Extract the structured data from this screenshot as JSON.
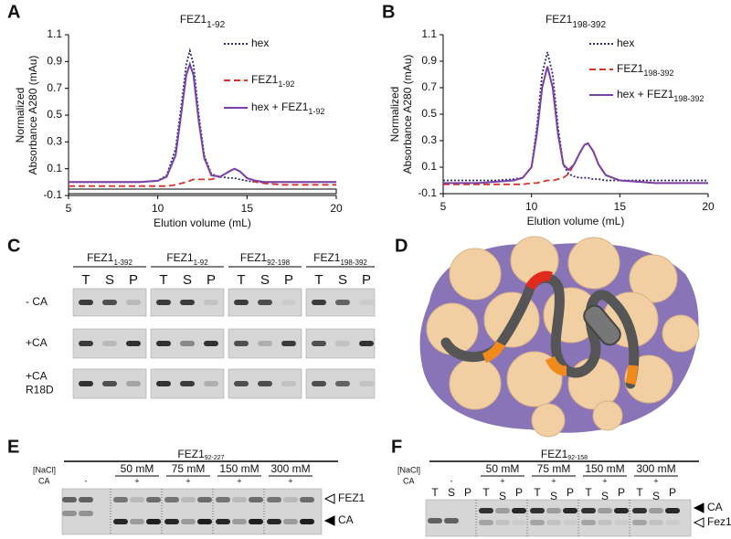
{
  "chart_data": [
    {
      "type": "line",
      "panel": "A",
      "title": "FEZ1",
      "title_subscript": "1-92",
      "y_label": [
        "Normalized",
        "Absorbance A280 (mAu)"
      ],
      "x_label": "Elution volume (mL)",
      "xlim": [
        5,
        20
      ],
      "xticks": [
        5,
        10,
        15,
        20
      ],
      "ylim": [
        -0.1,
        1.1
      ],
      "yticks": [
        -0.1,
        0.1,
        0.3,
        0.5,
        0.7,
        0.9,
        1.1
      ],
      "x": [
        5,
        6,
        7,
        8,
        9,
        10,
        10.5,
        11,
        11.3,
        11.6,
        11.8,
        12,
        12.3,
        12.6,
        13,
        13.5,
        14,
        14.3,
        14.6,
        15,
        15.5,
        16,
        17,
        18,
        19,
        20
      ],
      "series": [
        {
          "name": "hex",
          "color": "#2a2f6e",
          "style": "dotted",
          "values": [
            0,
            0,
            0,
            0,
            0,
            0.01,
            0.05,
            0.25,
            0.55,
            0.88,
            0.98,
            0.88,
            0.5,
            0.2,
            0.06,
            0.04,
            0.03,
            0.03,
            0.02,
            0.01,
            0,
            0,
            0,
            0,
            0,
            0
          ]
        },
        {
          "name": "FEZ1",
          "name_subscript": "1-92",
          "color": "#d8322a",
          "style": "dashed",
          "values": [
            -0.03,
            -0.03,
            -0.03,
            -0.03,
            -0.03,
            -0.03,
            -0.03,
            -0.02,
            -0.01,
            0,
            0.01,
            0.02,
            0.02,
            0.02,
            0.02,
            0.04,
            0.08,
            0.1,
            0.08,
            0.03,
            0,
            -0.01,
            -0.02,
            -0.02,
            -0.02,
            -0.02
          ]
        },
        {
          "name": "hex + FEZ1",
          "name_subscript": "1-92",
          "color": "#7b3fa8",
          "style": "solid",
          "values": [
            0,
            0,
            0,
            0,
            0,
            0.01,
            0.04,
            0.2,
            0.5,
            0.8,
            0.88,
            0.8,
            0.45,
            0.18,
            0.05,
            0.04,
            0.08,
            0.1,
            0.08,
            0.03,
            0.01,
            0,
            0,
            0,
            0,
            0
          ]
        }
      ]
    },
    {
      "type": "line",
      "panel": "B",
      "title": "FEZ1",
      "title_subscript": "198-392",
      "y_label": [
        "Normalized",
        "Absorbance A280 (mAu)"
      ],
      "x_label": "Elution volume (mL)",
      "xlim": [
        5,
        20
      ],
      "xticks": [
        5,
        10,
        15,
        20
      ],
      "ylim": [
        -0.1,
        1.1
      ],
      "yticks": [
        -0.1,
        0.1,
        0.3,
        0.5,
        0.7,
        0.9,
        1.1
      ],
      "x": [
        5,
        6,
        7,
        8,
        9,
        9.5,
        10,
        10.3,
        10.6,
        10.9,
        11.2,
        11.5,
        11.8,
        12.1,
        12.4,
        12.7,
        13,
        13.2,
        13.5,
        13.8,
        14.2,
        15,
        16,
        17,
        18,
        20
      ],
      "series": [
        {
          "name": "hex",
          "color": "#2a2f6e",
          "style": "dotted",
          "values": [
            0,
            0,
            0,
            0,
            0.01,
            0.02,
            0.1,
            0.4,
            0.8,
            0.97,
            0.8,
            0.4,
            0.12,
            0.05,
            0.03,
            0.02,
            0.02,
            0.02,
            0.01,
            0.01,
            0,
            0,
            0,
            0,
            0,
            0
          ]
        },
        {
          "name": "FEZ1",
          "name_subscript": "198-392",
          "color": "#d8322a",
          "style": "dashed",
          "values": [
            -0.03,
            -0.03,
            -0.03,
            -0.03,
            -0.03,
            -0.03,
            -0.02,
            -0.02,
            -0.01,
            0,
            0,
            0.01,
            0.02,
            0.05,
            0.12,
            0.2,
            0.27,
            0.28,
            0.22,
            0.12,
            0.04,
            0,
            -0.01,
            -0.02,
            -0.02,
            -0.02
          ]
        },
        {
          "name": "hex + FEZ1",
          "name_subscript": "198-392",
          "color": "#7b3fa8",
          "style": "solid",
          "values": [
            -0.02,
            -0.02,
            -0.02,
            -0.01,
            0,
            0.02,
            0.1,
            0.35,
            0.7,
            0.86,
            0.7,
            0.35,
            0.12,
            0.08,
            0.12,
            0.2,
            0.27,
            0.28,
            0.22,
            0.12,
            0.04,
            0,
            -0.01,
            -0.02,
            -0.02,
            -0.02
          ]
        }
      ]
    }
  ],
  "panel_c": {
    "letter": "C",
    "headers": [
      {
        "name": "FEZ1",
        "subscript": "1-392"
      },
      {
        "name": "FEZ1",
        "subscript": "1-92"
      },
      {
        "name": "FEZ1",
        "subscript": "92-198"
      },
      {
        "name": "FEZ1",
        "subscript": "198-392"
      }
    ],
    "lanes": [
      "T",
      "S",
      "P"
    ],
    "rows": [
      [
        "- CA"
      ],
      [
        "+CA"
      ],
      [
        "+CA",
        "R18D"
      ]
    ]
  },
  "panel_d": {
    "letter": "D"
  },
  "panel_e": {
    "letter": "E",
    "title": "FEZ1",
    "title_subscript": "92-227",
    "row_labels": [
      "[NaCl]",
      "CA"
    ],
    "concentrations": [
      "50 mM",
      "75 mM",
      "150 mM",
      "300 mM"
    ],
    "minus": "-",
    "plus": "+",
    "lanes": [
      "T",
      "S",
      "P"
    ],
    "band_labels": [
      "FEZ1",
      "CA"
    ]
  },
  "panel_f": {
    "letter": "F",
    "title": "FEZ1",
    "title_subscript": "92-158",
    "row_labels": [
      "[NaCl]",
      "CA"
    ],
    "concentrations": [
      "50 mM",
      "75 mM",
      "150 mM",
      "300 mM"
    ],
    "minus": "-",
    "plus": "+",
    "lanes": [
      "T",
      "S",
      "P"
    ],
    "band_labels": [
      "CA",
      "Fez1"
    ]
  }
}
